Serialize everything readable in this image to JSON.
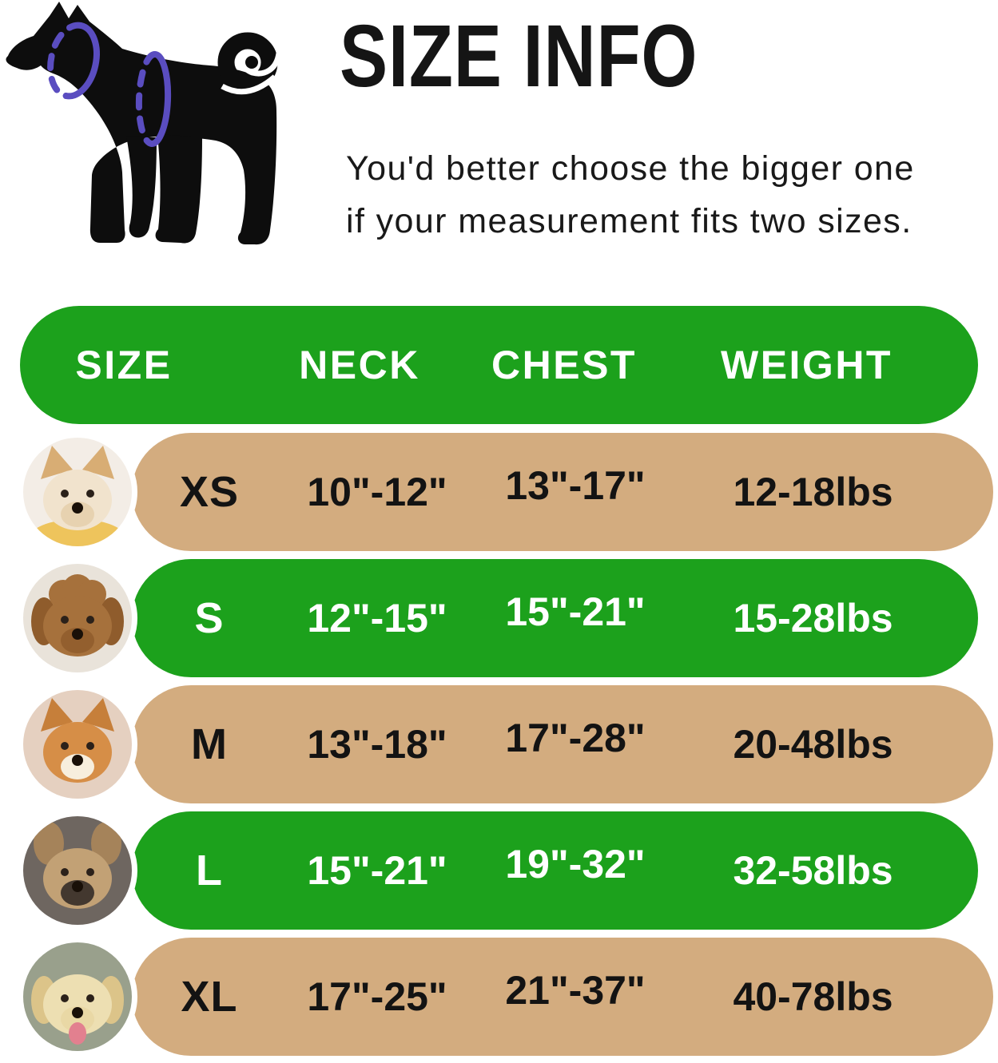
{
  "header": {
    "title": "SIZE INFO",
    "subtitle_line1": "You'd better choose the bigger one",
    "subtitle_line2": "if your measurement fits two sizes."
  },
  "illustration": {
    "name": "dog-measurement-diagram",
    "silhouette_color": "#0d0d0d",
    "loop_color": "#5a4dc0",
    "loops": [
      "neck-girth-loop",
      "chest-girth-loop"
    ]
  },
  "table": {
    "columns": [
      "SIZE",
      "NECK",
      "CHEST",
      "WEIGHT"
    ],
    "colors": {
      "green": "#1ca11c",
      "tan": "#d3ac7f",
      "header_text": "#ffffff"
    },
    "rows": [
      {
        "size": "XS",
        "neck": "10\"-12\"",
        "chest": "13\"-17\"",
        "weight": "12-18lbs",
        "variant": "tan",
        "photo": "pomeranian"
      },
      {
        "size": "S",
        "neck": "12\"-15\"",
        "chest": "15\"-21\"",
        "weight": "15-28lbs",
        "variant": "green",
        "photo": "poodle"
      },
      {
        "size": "M",
        "neck": "13\"-18\"",
        "chest": "17\"-28\"",
        "weight": "20-48lbs",
        "variant": "tan",
        "photo": "shiba-inu"
      },
      {
        "size": "L",
        "neck": "15\"-21\"",
        "chest": "19\"-32\"",
        "weight": "32-58lbs",
        "variant": "green",
        "photo": "french-bulldog"
      },
      {
        "size": "XL",
        "neck": "17\"-25\"",
        "chest": "21\"-37\"",
        "weight": "40-78lbs",
        "variant": "tan",
        "photo": "labrador"
      }
    ]
  },
  "photos": {
    "pomeranian": {
      "ear_style": "pointed",
      "bg": "#f3ede6",
      "fur": "#f1e3cd",
      "ear": "#d8ad74",
      "muzzle": "#e7d2b0",
      "accent": "#eec45c"
    },
    "poodle": {
      "ear_style": "floppy",
      "bg": "#e9e3da",
      "fur": "#a6713c",
      "ear": "#8f5c2c",
      "muzzle": "#935f2e",
      "topknot": true
    },
    "shiba-inu": {
      "ear_style": "pointed",
      "bg": "#e5d0c0",
      "fur": "#d68e47",
      "ear": "#c67f3a",
      "muzzle": "#f7eedd"
    },
    "french-bulldog": {
      "ear_style": "bat",
      "bg": "#6e6660",
      "fur": "#c2a175",
      "ear": "#a5835a",
      "muzzle": "#43382f"
    },
    "labrador": {
      "ear_style": "floppy",
      "bg": "#99a08c",
      "fur": "#eddfb2",
      "ear": "#dcc489",
      "muzzle": "#e9d8a5",
      "tongue": "#e2808f"
    }
  }
}
